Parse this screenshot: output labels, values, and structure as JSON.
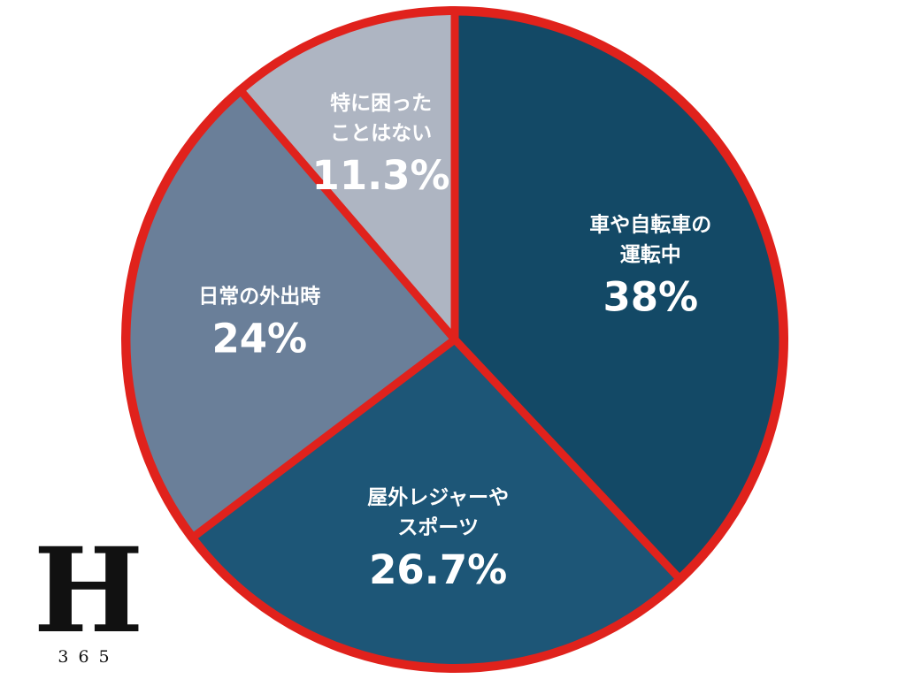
{
  "chart_data": {
    "type": "pie",
    "title": "",
    "start_angle_deg": 0,
    "direction": "clockwise",
    "slices": [
      {
        "label_lines": [
          "車や自転車の",
          "運転中"
        ],
        "value": 38.0,
        "value_label": "38%",
        "color": "#134966",
        "highlighted": true
      },
      {
        "label_lines": [
          "屋外レジャーや",
          "スポーツ"
        ],
        "value": 26.7,
        "value_label": "26.7%",
        "color": "#1d5677",
        "highlighted": false
      },
      {
        "label_lines": [
          "日常の外出時"
        ],
        "value": 24.0,
        "value_label": "24%",
        "color": "#6a7f99",
        "highlighted": true
      },
      {
        "label_lines": [
          "特に困った",
          "ことはない"
        ],
        "value": 11.3,
        "value_label": "11.3%",
        "color": "#aeb5c2",
        "highlighted": false
      }
    ],
    "separator_color": "#ffffff",
    "highlight_border_color": "#e0221c",
    "outer_border_color": "#e0221c"
  },
  "logo": {
    "letter": "H",
    "number": "365"
  }
}
